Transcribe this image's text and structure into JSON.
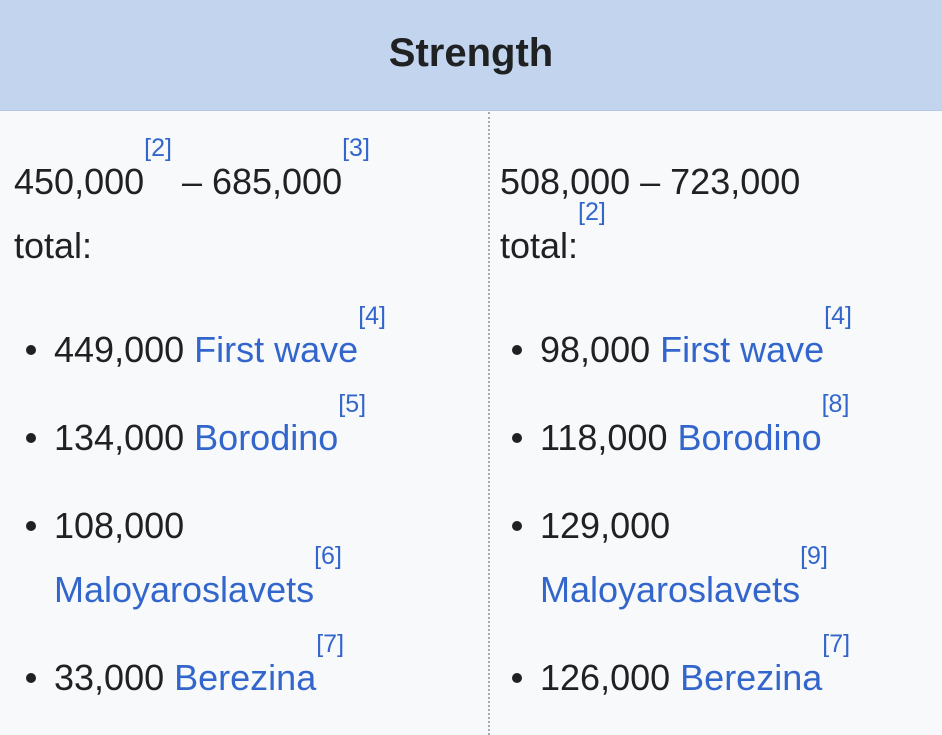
{
  "header": {
    "title": "Strength"
  },
  "left": {
    "total_low": "450,000",
    "total_low_ref": "[2]",
    "dash": " – ",
    "total_high": "685,000",
    "total_high_ref": "[3]",
    "total_label": "total:",
    "items": [
      {
        "count": "449,000",
        "name": "First wave",
        "ref": "[4]"
      },
      {
        "count": "134,000",
        "name": "Borodino",
        "ref": "[5]"
      },
      {
        "count": "108,000",
        "name": "Maloyaroslavets",
        "ref": "[6]"
      },
      {
        "count": "33,000",
        "name": "Berezina",
        "ref": "[7]"
      }
    ]
  },
  "right": {
    "total_range": "508,000 – 723,000",
    "total_label": "total:",
    "total_ref": "[2]",
    "items": [
      {
        "count": "98,000",
        "name": "First wave",
        "ref": "[4]"
      },
      {
        "count": "118,000",
        "name": "Borodino",
        "ref": "[8]"
      },
      {
        "count": "129,000",
        "name": "Maloyaroslavets",
        "ref": "[9]"
      },
      {
        "count": "126,000",
        "name": "Berezina",
        "ref": "[7]"
      }
    ]
  }
}
